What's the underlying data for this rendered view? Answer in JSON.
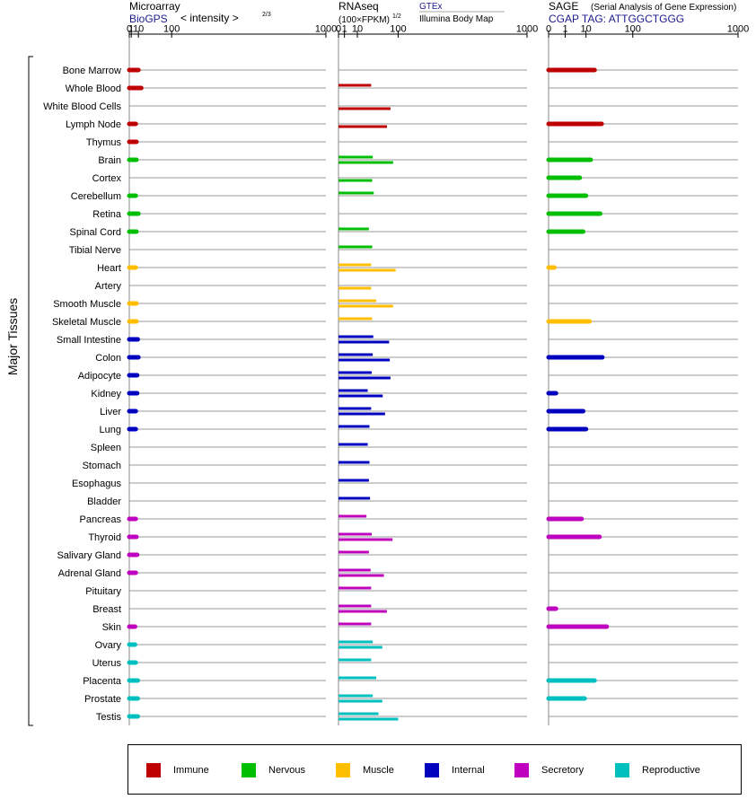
{
  "panels": [
    {
      "title": "Microarray",
      "subtitle": "BioGPS",
      "note": "< intensity >",
      "note_exp": "2/3",
      "tick_labels": [
        "0",
        "1",
        "10",
        "100",
        "1000"
      ],
      "values": [
        10,
        15,
        null,
        6,
        7,
        7,
        null,
        6,
        10,
        7,
        null,
        6,
        null,
        7,
        7,
        9,
        10,
        8,
        8,
        6,
        6,
        null,
        null,
        null,
        null,
        6,
        7,
        8,
        6,
        null,
        null,
        5,
        5,
        6,
        9,
        9,
        9
      ]
    },
    {
      "title": "RNAseq",
      "subtitle": "(100×FPKM)",
      "subtitle_exp": "1/2",
      "src_a": "GTEx",
      "src_b": "Illumina Body Map",
      "tick_labels": [
        "0",
        "1",
        "10",
        "100",
        "1000"
      ],
      "values_a": [
        null,
        30,
        null,
        null,
        null,
        33,
        null,
        35,
        null,
        26,
        32,
        30,
        null,
        40,
        32,
        34,
        33,
        31,
        24,
        30,
        27,
        24,
        27,
        26,
        28,
        22,
        31,
        26,
        29,
        30,
        30,
        30,
        33,
        30,
        40,
        33,
        45
      ],
      "values_b": [
        null,
        null,
        76,
        66,
        null,
        84,
        32,
        null,
        null,
        null,
        null,
        92,
        30,
        84,
        null,
        72,
        74,
        76,
        55,
        61,
        null,
        null,
        null,
        null,
        null,
        null,
        82,
        null,
        58,
        null,
        66,
        null,
        54,
        null,
        null,
        54,
        100
      ]
    },
    {
      "title": "SAGE",
      "title_note": "(Serial Analysis of Gene Expression)",
      "subtitle": "CGAP TAG: ATTGGCTGGG",
      "tick_labels": [
        "0",
        "1",
        "10",
        "100",
        "1000"
      ],
      "values": [
        18,
        null,
        null,
        27,
        null,
        14,
        6,
        10,
        25,
        8,
        null,
        0.05,
        null,
        null,
        13,
        null,
        28,
        null,
        0.1,
        8,
        10,
        null,
        null,
        null,
        null,
        7,
        24,
        null,
        null,
        null,
        0.1,
        35,
        null,
        null,
        18,
        9,
        null
      ]
    }
  ],
  "tissues": [
    "Bone Marrow",
    "Whole Blood",
    "White Blood Cells",
    "Lymph Node",
    "Thymus",
    "Brain",
    "Cortex",
    "Cerebellum",
    "Retina",
    "Spinal Cord",
    "Tibial Nerve",
    "Heart",
    "Artery",
    "Smooth Muscle",
    "Skeletal Muscle",
    "Small Intestine",
    "Colon",
    "Adipocyte",
    "Kidney",
    "Liver",
    "Lung",
    "Spleen",
    "Stomach",
    "Esophagus",
    "Bladder",
    "Pancreas",
    "Thyroid",
    "Salivary Gland",
    "Adrenal Gland",
    "Pituitary",
    "Breast",
    "Skin",
    "Ovary",
    "Uterus",
    "Placenta",
    "Prostate",
    "Testis"
  ],
  "groups": [
    "immune",
    "immune",
    "immune",
    "immune",
    "immune",
    "nervous",
    "nervous",
    "nervous",
    "nervous",
    "nervous",
    "nervous",
    "muscle",
    "muscle",
    "muscle",
    "muscle",
    "internal",
    "internal",
    "internal",
    "internal",
    "internal",
    "internal",
    "internal",
    "internal",
    "internal",
    "internal",
    "secretory",
    "secretory",
    "secretory",
    "secretory",
    "secretory",
    "secretory",
    "secretory",
    "reproductive",
    "reproductive",
    "reproductive",
    "reproductive",
    "reproductive"
  ],
  "y_axis_label": "Major Tissues",
  "colors": {
    "immune": "#bf0000",
    "nervous": "#00bf00",
    "muscle": "#ffbf00",
    "internal": "#0000bf",
    "secretory": "#bf00bf",
    "reproductive": "#00bfbf",
    "grid": "#777777",
    "text_blue": "#1a1a8c"
  },
  "legend": [
    {
      "key": "immune",
      "label": "Immune"
    },
    {
      "key": "nervous",
      "label": "Nervous"
    },
    {
      "key": "muscle",
      "label": "Muscle"
    },
    {
      "key": "internal",
      "label": "Internal"
    },
    {
      "key": "secretory",
      "label": "Secretory"
    },
    {
      "key": "reproductive",
      "label": "Reproductive"
    }
  ],
  "chart_data": {
    "type": "bar",
    "x_scale": "power-2/3 for Microarray, sqrt for RNAseq, log-like for SAGE",
    "xlim": [
      0,
      1000
    ],
    "categories_ref": "tissues",
    "series_ref": "panels"
  }
}
